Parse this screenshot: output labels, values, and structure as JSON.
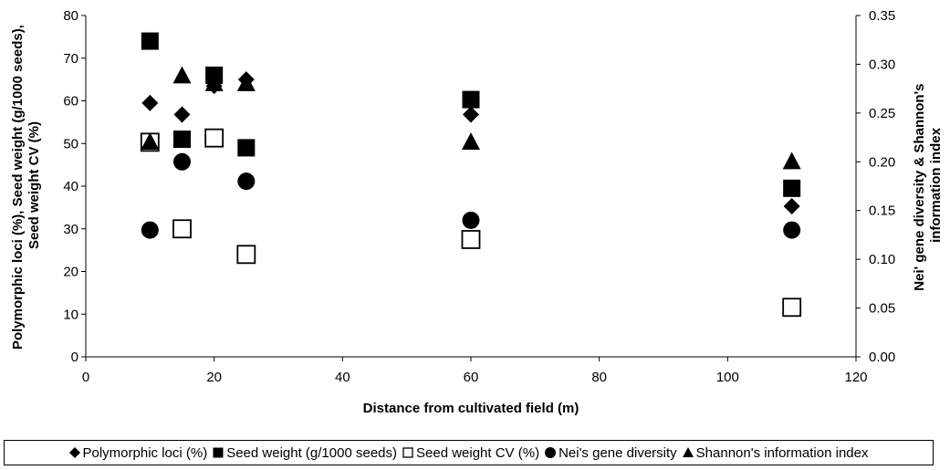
{
  "chart_data": {
    "type": "scatter",
    "xlabel": "Distance from cultivated field (m)",
    "ylabel_left": "Polymorphic loci (%), Seed weight (g/1000 seeds), Seed weight CV (%)",
    "ylabel_right": "Nei' gene diversity & Shannon's information index",
    "xlim": [
      0,
      120
    ],
    "ylim_left": [
      0,
      80
    ],
    "ylim_right": [
      0,
      0.35
    ],
    "x_ticks": [
      "0",
      "20",
      "40",
      "60",
      "80",
      "100",
      "120"
    ],
    "y_left_ticks": [
      "0",
      "10",
      "20",
      "30",
      "40",
      "50",
      "60",
      "70",
      "80"
    ],
    "y_right_ticks": [
      "0.00",
      "0.05",
      "0.10",
      "0.15",
      "0.20",
      "0.25",
      "0.30",
      "0.35"
    ],
    "grid": false,
    "legend_position": "bottom",
    "series": [
      {
        "name": "Polymorphic loci (%)",
        "axis": "left",
        "marker": "diamond",
        "filled": true,
        "x": [
          10,
          15,
          20,
          25,
          60,
          110
        ],
        "y": [
          59.5,
          56.8,
          63.5,
          65,
          56.8,
          35.3
        ]
      },
      {
        "name": "Seed weight (g/1000 seeds)",
        "axis": "left",
        "marker": "square",
        "filled": true,
        "x": [
          10,
          15,
          20,
          25,
          60,
          110
        ],
        "y": [
          74,
          51,
          66,
          49,
          60.3,
          39.5
        ]
      },
      {
        "name": "Seed weight CV (%)",
        "axis": "left",
        "marker": "square",
        "filled": false,
        "x": [
          10,
          15,
          20,
          25,
          60,
          110
        ],
        "y": [
          50.3,
          30,
          51.3,
          24,
          27.5,
          11.6
        ]
      },
      {
        "name": "Nei's gene diversity",
        "axis": "right",
        "marker": "circle",
        "filled": true,
        "x": [
          10,
          15,
          25,
          60,
          110
        ],
        "y": [
          0.13,
          0.2,
          0.18,
          0.14,
          0.13
        ]
      },
      {
        "name": "Shannon's information index",
        "axis": "right",
        "marker": "triangle",
        "filled": true,
        "x": [
          10,
          15,
          20,
          25,
          60,
          110
        ],
        "y": [
          0.22,
          0.288,
          0.28,
          0.28,
          0.22,
          0.2
        ]
      }
    ]
  },
  "legend": {
    "items": [
      {
        "marker": "diamond",
        "label": "Polymorphic loci (%)"
      },
      {
        "marker": "square-filled",
        "label": "Seed weight (g/1000 seeds)"
      },
      {
        "marker": "square-open",
        "label": "Seed weight CV (%)"
      },
      {
        "marker": "circle",
        "label": "Nei's gene diversity"
      },
      {
        "marker": "triangle",
        "label": "Shannon's information index"
      }
    ]
  }
}
